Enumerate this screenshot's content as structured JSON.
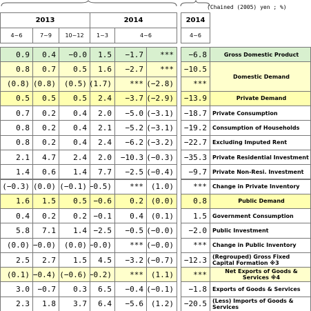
{
  "unit": "(Chained (2005) yen ; %)",
  "header": {
    "years": [
      "2013",
      "2014",
      "2014"
    ],
    "quarters": [
      "4~6",
      "7~9",
      "10~12",
      "1~3",
      "4~6",
      "4~6"
    ]
  },
  "rows": [
    {
      "values": [
        "0.9",
        "0.4",
        "−0.0",
        "1.5",
        "−1.7",
        "***",
        "−6.8"
      ],
      "label": "Gross Domestic Product",
      "color": "#d8f0cf"
    },
    {
      "values": [
        "0.8",
        "0.7",
        "0.5",
        "1.6",
        "−2.7",
        "***",
        "−10.5"
      ],
      "label": "Domestic Demand",
      "color": "#ffffcc"
    },
    {
      "values": [
        "(0.8)",
        "(0.8)",
        "(0.5)",
        "(1.7)",
        "***",
        "(−2.8)",
        "***"
      ],
      "color": "#ffffcc"
    },
    {
      "values": [
        "0.5",
        "0.5",
        "0.5",
        "2.4",
        "−3.7",
        "(−2.9)",
        "−13.9"
      ],
      "label": "Private Demand",
      "color": "#ffffb0"
    },
    {
      "values": [
        "0.7",
        "0.2",
        "0.4",
        "2.0",
        "−5.0",
        "(−3.1)",
        "−18.7"
      ],
      "label": "Private Consumption"
    },
    {
      "values": [
        "0.8",
        "0.2",
        "0.4",
        "2.1",
        "−5.2",
        "(−3.1)",
        "−19.2"
      ],
      "label": "Consumption of Households"
    },
    {
      "values": [
        "0.8",
        "0.2",
        "0.4",
        "2.4",
        "−6.2",
        "(−3.2)",
        "−22.7"
      ],
      "label": "Excluding Imputed Rent"
    },
    {
      "values": [
        "2.1",
        "4.7",
        "2.4",
        "2.0",
        "−10.3",
        "(−0.3)",
        "−35.3"
      ],
      "label": "Private Residential Investment"
    },
    {
      "values": [
        "1.4",
        "0.6",
        "1.4",
        "7.7",
        "−2.5",
        "(−0.4)",
        "−9.7"
      ],
      "label": "Private Non-Resi. Investment"
    },
    {
      "values": [
        "(−0.3)",
        "(0.0)",
        "(−0.1)",
        "(−0.5)",
        "***",
        "(1.0)",
        "***"
      ],
      "label": "Change in Private Inventory"
    },
    {
      "values": [
        "1.6",
        "1.5",
        "0.5",
        "−0.6",
        "0.2",
        "(0.0)",
        "0.8"
      ],
      "label": "Public Demand",
      "color": "#ffffb0"
    },
    {
      "values": [
        "0.4",
        "0.2",
        "0.2",
        "−0.1",
        "0.4",
        "(0.1)",
        "1.5"
      ],
      "label": "Government Consumption"
    },
    {
      "values": [
        "5.8",
        "7.1",
        "1.4",
        "−2.5",
        "−0.5",
        "(−0.0)",
        "−2.0"
      ],
      "label": "Public Investment"
    },
    {
      "values": [
        "(0.0)",
        "(−0.0)",
        "(0.0)",
        "(−0.0)",
        "***",
        "(−0.0)",
        "***"
      ],
      "label": "Change in Public Inventory"
    },
    {
      "values": [
        "2.5",
        "2.7",
        "1.5",
        "4.5",
        "−3.2",
        "(−0.7)",
        "−12.3"
      ],
      "label": "(Regrouped) Gross Fixed Capital Formation ※3"
    },
    {
      "values": [
        "(0.1)",
        "(−0.4)",
        "(−0.6)",
        "(−0.2)",
        "***",
        "(1.1)",
        "***"
      ],
      "label": "Net Exports of Goods & Services ※4",
      "color": "#ffffcc"
    },
    {
      "values": [
        "3.0",
        "−0.7",
        "0.3",
        "6.5",
        "−0.4",
        "(−0.1)",
        "−1.8"
      ],
      "label": "Exports of Goods & Services"
    },
    {
      "values": [
        "2.3",
        "1.8",
        "3.7",
        "6.4",
        "−5.6",
        "(1.2)",
        "−20.5"
      ],
      "label": "(Less) Imports of Goods & Services"
    }
  ]
}
